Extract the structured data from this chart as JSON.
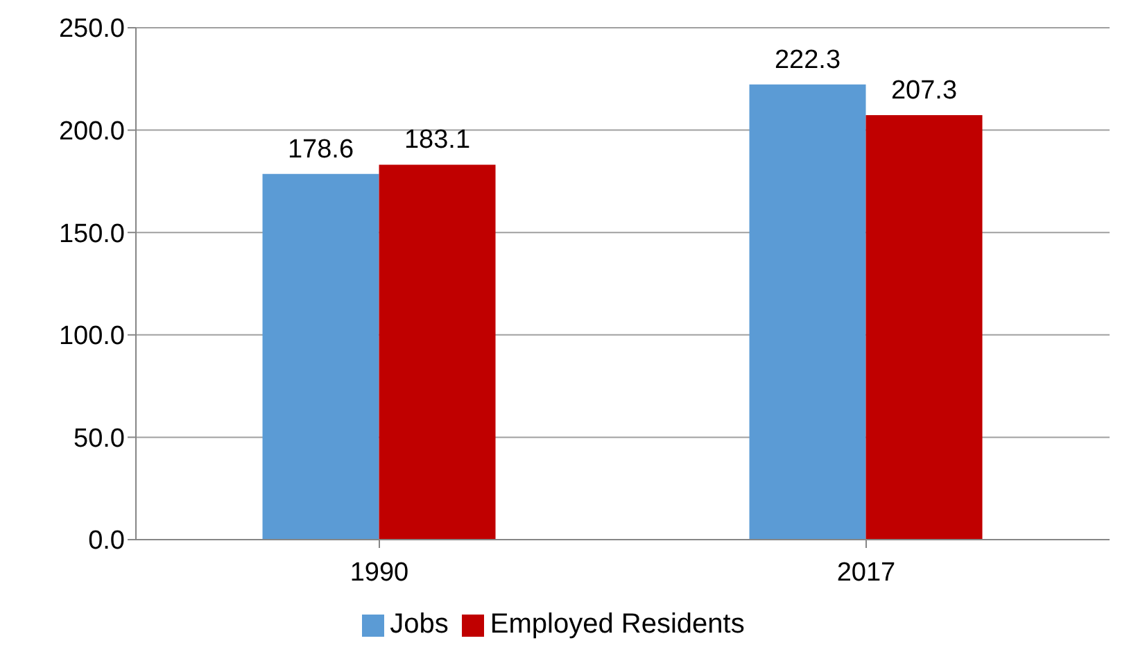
{
  "chart_data": {
    "type": "bar",
    "categories": [
      "1990",
      "2017"
    ],
    "series": [
      {
        "name": "Jobs",
        "color": "#5b9bd5",
        "values": [
          178.6,
          222.3
        ]
      },
      {
        "name": "Employed Residents",
        "color": "#c00000",
        "values": [
          183.1,
          207.3
        ]
      }
    ],
    "ylim": [
      0,
      250
    ],
    "yticks": [
      {
        "value": 0,
        "label": "0.0"
      },
      {
        "value": 50,
        "label": "50.0"
      },
      {
        "value": 100,
        "label": "100.0"
      },
      {
        "value": 150,
        "label": "150.0"
      },
      {
        "value": 200,
        "label": "200.0"
      },
      {
        "value": 250,
        "label": "250.0"
      }
    ],
    "grid": "y",
    "legend": "bottom",
    "data_labels": true
  }
}
